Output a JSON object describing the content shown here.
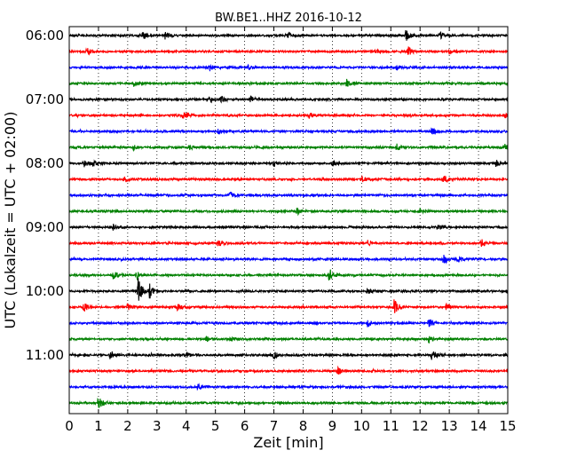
{
  "chart_data": {
    "type": "line",
    "title": "BW.BE1..HHZ 2016-10-12",
    "xlabel": "Zeit  [min]",
    "ylabel": "UTC (Lokalzeit = UTC + 02:00)",
    "xlim": [
      0,
      15
    ],
    "x_ticks": [
      0,
      1,
      2,
      3,
      4,
      5,
      6,
      7,
      8,
      9,
      10,
      11,
      12,
      13,
      14,
      15
    ],
    "x_grid": "dotted vertical lines at every minute",
    "y_ticks": [
      "06:00",
      "07:00",
      "08:00",
      "09:00",
      "10:00",
      "11:00"
    ],
    "trace_interval_min": 15,
    "colors": [
      "#000000",
      "#ff0000",
      "#0000ff",
      "#008000"
    ],
    "traces": [
      {
        "start": "06:00",
        "color": "#000000",
        "events": [
          {
            "t": 2.5,
            "a": 4
          },
          {
            "t": 3.3,
            "a": 4
          },
          {
            "t": 7.5,
            "a": 4
          },
          {
            "t": 11.5,
            "a": 7
          },
          {
            "t": 12.7,
            "a": 4
          }
        ]
      },
      {
        "start": "06:15",
        "color": "#ff0000",
        "events": [
          {
            "t": 0.6,
            "a": 4
          },
          {
            "t": 10.5,
            "a": 3
          },
          {
            "t": 11.6,
            "a": 5
          },
          {
            "t": 13.0,
            "a": 3
          }
        ]
      },
      {
        "start": "06:30",
        "color": "#0000ff",
        "events": [
          {
            "t": 4.8,
            "a": 4
          },
          {
            "t": 6.1,
            "a": 3
          },
          {
            "t": 11.2,
            "a": 3
          }
        ]
      },
      {
        "start": "06:45",
        "color": "#008000",
        "events": [
          {
            "t": 2.2,
            "a": 3
          },
          {
            "t": 9.5,
            "a": 5
          }
        ]
      },
      {
        "start": "07:00",
        "color": "#000000",
        "events": [
          {
            "t": 4.8,
            "a": 4
          },
          {
            "t": 5.2,
            "a": 3
          },
          {
            "t": 6.2,
            "a": 3
          }
        ]
      },
      {
        "start": "07:15",
        "color": "#ff0000",
        "events": [
          {
            "t": 3.9,
            "a": 4
          },
          {
            "t": 8.2,
            "a": 3
          },
          {
            "t": 14.9,
            "a": 3
          }
        ]
      },
      {
        "start": "07:30",
        "color": "#0000ff",
        "events": [
          {
            "t": 5.1,
            "a": 3
          },
          {
            "t": 12.4,
            "a": 3
          }
        ]
      },
      {
        "start": "07:45",
        "color": "#008000",
        "events": [
          {
            "t": 2.2,
            "a": 3
          },
          {
            "t": 4.1,
            "a": 3
          },
          {
            "t": 11.2,
            "a": 4
          },
          {
            "t": 14.9,
            "a": 4
          }
        ]
      },
      {
        "start": "08:00",
        "color": "#000000",
        "events": [
          {
            "t": 0.5,
            "a": 4
          },
          {
            "t": 0.8,
            "a": 4
          },
          {
            "t": 7.0,
            "a": 4
          },
          {
            "t": 9.0,
            "a": 3
          },
          {
            "t": 14.6,
            "a": 4
          }
        ]
      },
      {
        "start": "08:15",
        "color": "#ff0000",
        "events": [
          {
            "t": 1.9,
            "a": 3
          },
          {
            "t": 10.0,
            "a": 3
          },
          {
            "t": 12.8,
            "a": 4
          }
        ]
      },
      {
        "start": "08:30",
        "color": "#0000ff",
        "events": [
          {
            "t": 5.5,
            "a": 4
          }
        ]
      },
      {
        "start": "08:45",
        "color": "#008000",
        "events": [
          {
            "t": 7.8,
            "a": 3
          },
          {
            "t": 12.0,
            "a": 3
          }
        ]
      },
      {
        "start": "09:00",
        "color": "#000000",
        "events": [
          {
            "t": 1.5,
            "a": 3
          },
          {
            "t": 12.6,
            "a": 3
          }
        ]
      },
      {
        "start": "09:15",
        "color": "#ff0000",
        "events": [
          {
            "t": 5.1,
            "a": 4
          },
          {
            "t": 10.2,
            "a": 3
          },
          {
            "t": 14.1,
            "a": 4
          }
        ]
      },
      {
        "start": "09:30",
        "color": "#0000ff",
        "events": [
          {
            "t": 12.8,
            "a": 7
          },
          {
            "t": 13.3,
            "a": 3
          }
        ]
      },
      {
        "start": "09:45",
        "color": "#008000",
        "events": [
          {
            "t": 1.5,
            "a": 5
          },
          {
            "t": 2.3,
            "a": 5
          },
          {
            "t": 8.9,
            "a": 8
          }
        ]
      },
      {
        "start": "10:00",
        "color": "#000000",
        "events": [
          {
            "t": 2.35,
            "a": 16
          },
          {
            "t": 2.75,
            "a": 8
          },
          {
            "t": 10.2,
            "a": 3
          }
        ]
      },
      {
        "start": "10:15",
        "color": "#ff0000",
        "events": [
          {
            "t": 0.5,
            "a": 5
          },
          {
            "t": 2.0,
            "a": 4
          },
          {
            "t": 3.7,
            "a": 5
          },
          {
            "t": 11.1,
            "a": 10
          },
          {
            "t": 12.9,
            "a": 4
          }
        ]
      },
      {
        "start": "10:30",
        "color": "#0000ff",
        "events": [
          {
            "t": 10.2,
            "a": 4
          },
          {
            "t": 12.3,
            "a": 5
          }
        ]
      },
      {
        "start": "10:45",
        "color": "#008000",
        "events": [
          {
            "t": 4.7,
            "a": 3
          },
          {
            "t": 5.5,
            "a": 3
          },
          {
            "t": 12.3,
            "a": 4
          }
        ]
      },
      {
        "start": "11:00",
        "color": "#000000",
        "events": [
          {
            "t": 1.4,
            "a": 4
          },
          {
            "t": 4.0,
            "a": 3
          },
          {
            "t": 7.0,
            "a": 4
          },
          {
            "t": 12.4,
            "a": 6
          }
        ]
      },
      {
        "start": "11:15",
        "color": "#ff0000",
        "events": [
          {
            "t": 9.2,
            "a": 4
          }
        ]
      },
      {
        "start": "11:30",
        "color": "#0000ff",
        "events": [
          {
            "t": 4.4,
            "a": 3
          }
        ]
      },
      {
        "start": "11:45",
        "color": "#008000",
        "events": [
          {
            "t": 1.0,
            "a": 8
          }
        ]
      }
    ]
  }
}
